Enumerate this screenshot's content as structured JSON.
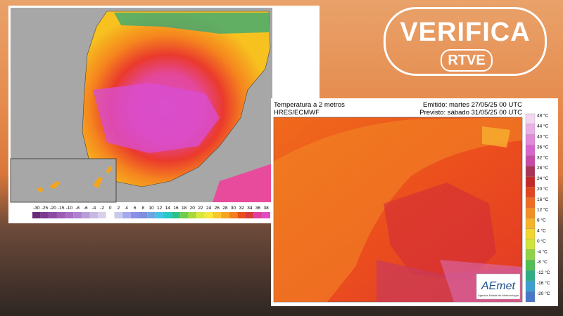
{
  "badge": {
    "title": "VERIFICA",
    "subtitle": "RTVE"
  },
  "left_map": {
    "scale_labels": [
      -30,
      -25,
      -20,
      -15,
      -10,
      -8,
      -6,
      -4,
      -2,
      0,
      2,
      4,
      6,
      8,
      10,
      12,
      14,
      16,
      18,
      20,
      22,
      24,
      26,
      28,
      30,
      32,
      34,
      36,
      38
    ]
  },
  "right_map": {
    "title": "Temperatura a 2 metros",
    "model": "HRES/ECMWF",
    "issued": "Emitido: martes 27/05/25 00 UTC",
    "valid": "Previsto: sábado 31/05/25 00 UTC",
    "scale_labels": [
      "48 °C",
      "44 °C",
      "40 °C",
      "36 °C",
      "32 °C",
      "28 °C",
      "24 °C",
      "20 °C",
      "16 °C",
      "12 °C",
      "8 °C",
      "4 °C",
      "0 °C",
      "-4 °C",
      "-8 °C",
      "-12 °C",
      "-16 °C",
      "-20 °C"
    ],
    "logo": "AEmet",
    "logo_caption": "Agencia Estatal de Meteorología"
  }
}
